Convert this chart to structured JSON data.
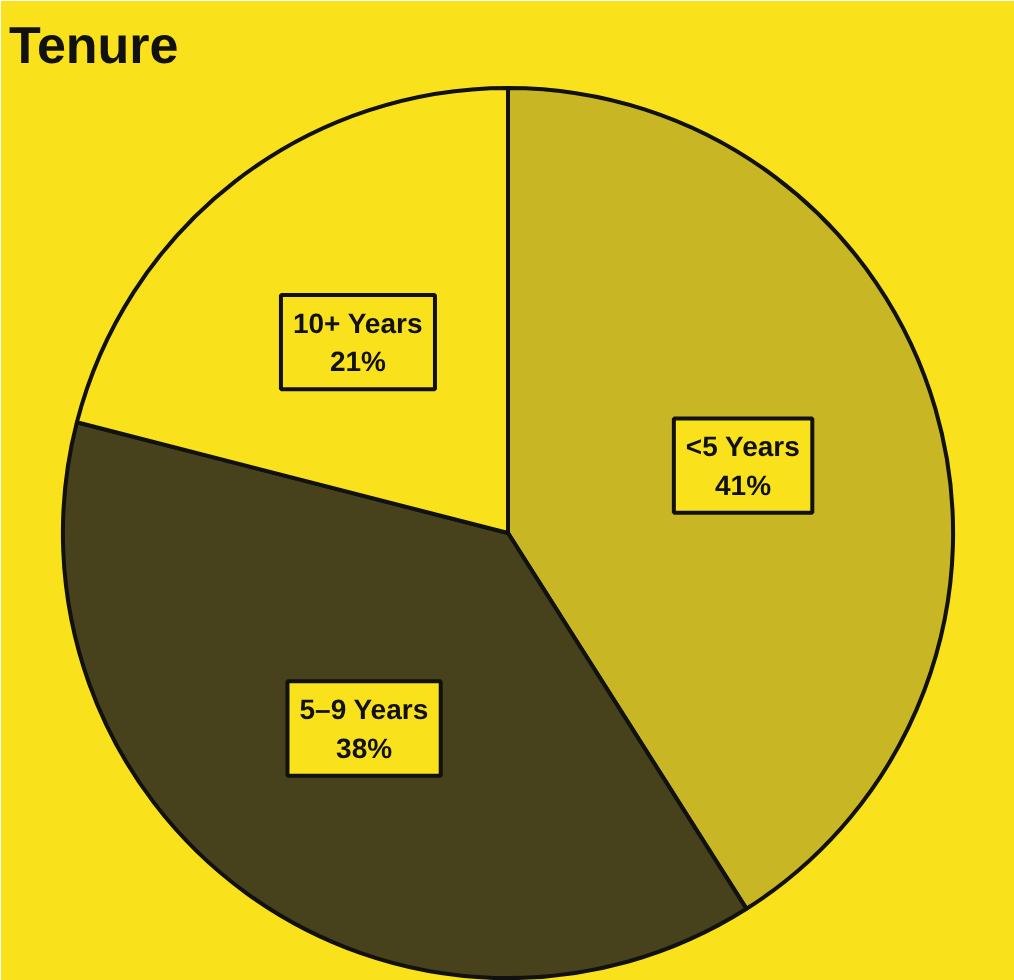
{
  "chart_data": {
    "type": "pie",
    "title": "Tenure",
    "categories": [
      "<5 Years",
      "5–9 Years",
      "10+ Years"
    ],
    "values": [
      41,
      38,
      21
    ],
    "colors": [
      "#c8b624",
      "#47421c",
      "#f9e11b"
    ],
    "value_labels": [
      "41%",
      "38%",
      "21%"
    ]
  }
}
